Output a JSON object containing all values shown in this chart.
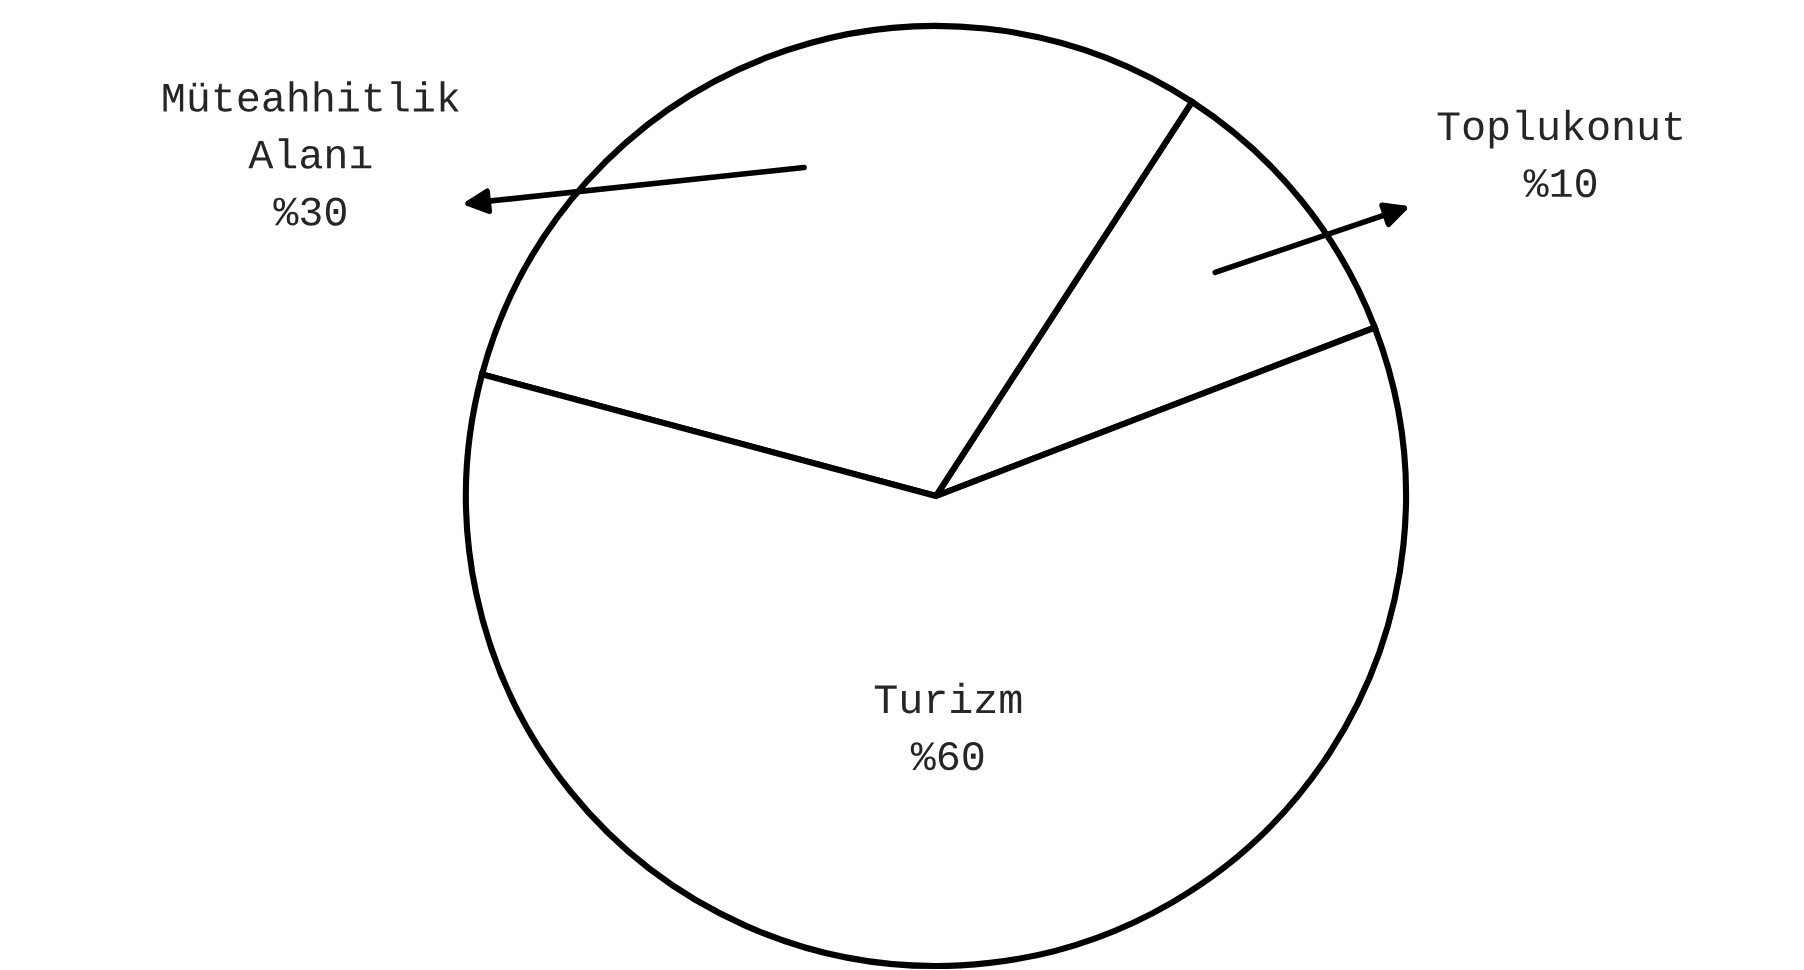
{
  "chart_data": {
    "type": "pie",
    "categories": [
      "Toplukonut",
      "Müteahhitlik\nAlanı",
      "Turizm"
    ],
    "values": [
      10,
      30,
      60
    ],
    "value_labels": [
      "%10",
      "%30",
      "%60"
    ],
    "colors": [
      "#ffffff",
      "#ffffff",
      "#ffffff"
    ]
  }
}
